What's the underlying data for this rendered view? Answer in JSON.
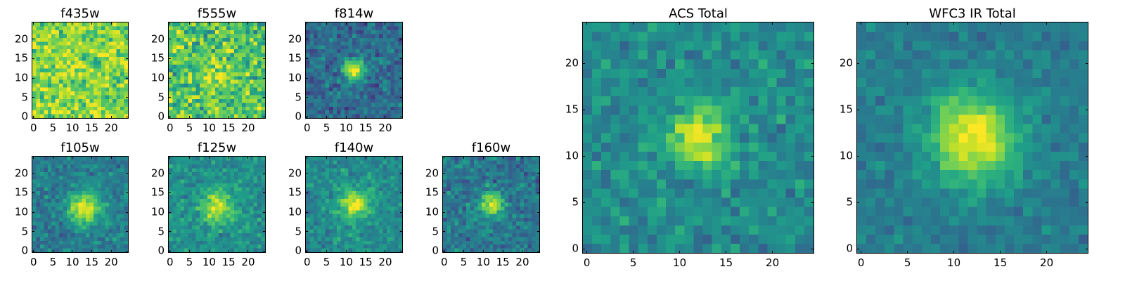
{
  "chart_data": {
    "type": "heatmap",
    "colormap": "viridis",
    "grid": false,
    "panels": [
      {
        "title": "f435w",
        "xlim": [
          0,
          24
        ],
        "ylim": [
          0,
          24
        ],
        "xticks": [
          0,
          5,
          10,
          15,
          20
        ],
        "yticks": [
          0,
          5,
          10,
          15,
          20
        ],
        "image": {
          "shape": [
            25,
            25
          ],
          "background": 0.82,
          "noise": 0.16,
          "peak_center": [
            12,
            12
          ],
          "peak_amplitude": 0.0,
          "peak_sigma": 3.0,
          "seed": 1
        }
      },
      {
        "title": "f555w",
        "xlim": [
          0,
          24
        ],
        "ylim": [
          0,
          24
        ],
        "xticks": [
          0,
          5,
          10,
          15,
          20
        ],
        "yticks": [
          0,
          5,
          10,
          15,
          20
        ],
        "image": {
          "shape": [
            25,
            25
          ],
          "background": 0.72,
          "noise": 0.18,
          "peak_center": [
            12,
            11
          ],
          "peak_amplitude": 0.18,
          "peak_sigma": 3.0,
          "seed": 2
        }
      },
      {
        "title": "f814w",
        "xlim": [
          0,
          24
        ],
        "ylim": [
          0,
          24
        ],
        "xticks": [
          0,
          5,
          10,
          15,
          20
        ],
        "yticks": [
          0,
          5,
          10,
          15,
          20
        ],
        "image": {
          "shape": [
            25,
            25
          ],
          "background": 0.35,
          "noise": 0.12,
          "peak_center": [
            12,
            12
          ],
          "peak_amplitude": 0.62,
          "peak_sigma": 2.0,
          "seed": 3
        }
      },
      {
        "title": "f105w",
        "xlim": [
          0,
          24
        ],
        "ylim": [
          0,
          24
        ],
        "xticks": [
          0,
          5,
          10,
          15,
          20
        ],
        "yticks": [
          0,
          5,
          10,
          15,
          20
        ],
        "image": {
          "shape": [
            25,
            25
          ],
          "background": 0.42,
          "noise": 0.1,
          "peak_center": [
            13,
            11
          ],
          "peak_amplitude": 0.55,
          "peak_sigma": 3.0,
          "seed": 4
        }
      },
      {
        "title": "f125w",
        "xlim": [
          0,
          24
        ],
        "ylim": [
          0,
          24
        ],
        "xticks": [
          0,
          5,
          10,
          15,
          20
        ],
        "yticks": [
          0,
          5,
          10,
          15,
          20
        ],
        "image": {
          "shape": [
            25,
            25
          ],
          "background": 0.5,
          "noise": 0.1,
          "peak_center": [
            12,
            11
          ],
          "peak_amplitude": 0.45,
          "peak_sigma": 3.0,
          "seed": 5
        }
      },
      {
        "title": "f140w",
        "xlim": [
          0,
          24
        ],
        "ylim": [
          0,
          24
        ],
        "xticks": [
          0,
          5,
          10,
          15,
          20
        ],
        "yticks": [
          0,
          5,
          10,
          15,
          20
        ],
        "image": {
          "shape": [
            25,
            25
          ],
          "background": 0.48,
          "noise": 0.1,
          "peak_center": [
            12,
            12
          ],
          "peak_amplitude": 0.45,
          "peak_sigma": 3.0,
          "seed": 6
        }
      },
      {
        "title": "f160w",
        "xlim": [
          0,
          24
        ],
        "ylim": [
          0,
          24
        ],
        "xticks": [
          0,
          5,
          10,
          15,
          20
        ],
        "yticks": [
          0,
          5,
          10,
          15,
          20
        ],
        "image": {
          "shape": [
            25,
            25
          ],
          "background": 0.4,
          "noise": 0.12,
          "peak_center": [
            12,
            12
          ],
          "peak_amplitude": 0.55,
          "peak_sigma": 2.2,
          "seed": 7
        }
      },
      {
        "title": "ACS Total",
        "xlim": [
          0,
          24
        ],
        "ylim": [
          0,
          24
        ],
        "xticks": [
          0,
          5,
          10,
          15,
          20
        ],
        "yticks": [
          0,
          5,
          10,
          15,
          20
        ],
        "image": {
          "shape": [
            25,
            25
          ],
          "background": 0.48,
          "noise": 0.1,
          "peak_center": [
            12,
            12
          ],
          "peak_amplitude": 0.5,
          "peak_sigma": 2.3,
          "seed": 8
        }
      },
      {
        "title": "WFC3 IR Total",
        "xlim": [
          0,
          24
        ],
        "ylim": [
          0,
          24
        ],
        "xticks": [
          0,
          5,
          10,
          15,
          20
        ],
        "yticks": [
          0,
          5,
          10,
          15,
          20
        ],
        "image": {
          "shape": [
            25,
            25
          ],
          "background": 0.42,
          "noise": 0.07,
          "peak_center": [
            12,
            12
          ],
          "peak_amplitude": 0.58,
          "peak_sigma": 3.3,
          "seed": 9
        }
      }
    ]
  }
}
